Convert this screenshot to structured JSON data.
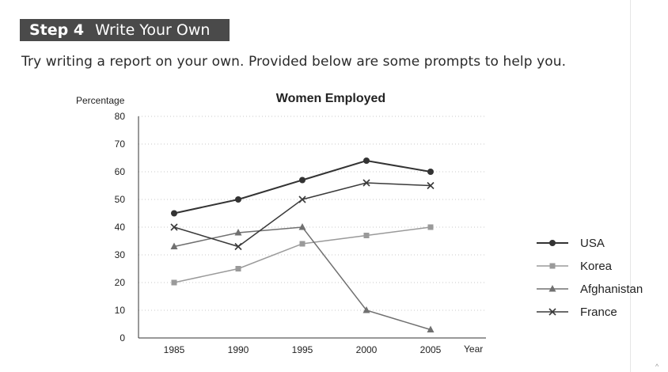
{
  "header": {
    "step_label": "Step 4",
    "step_title": "Write Your Own",
    "intro": "Try writing a report on your own. Provided below are some prompts to help you."
  },
  "corner_mark": "^",
  "chart_data": {
    "type": "line",
    "title": "Women Employed",
    "ylabel": "Percentage",
    "xlabel": "Year",
    "categories": [
      "1985",
      "1990",
      "1995",
      "2000",
      "2005"
    ],
    "ylim": [
      0,
      80
    ],
    "yticks": [
      0,
      10,
      20,
      30,
      40,
      50,
      60,
      70,
      80
    ],
    "grid": true,
    "legend_position": "right",
    "series": [
      {
        "name": "USA",
        "values": [
          45,
          50,
          57,
          64,
          60
        ],
        "marker": "circle",
        "color": "#333333"
      },
      {
        "name": "Korea",
        "values": [
          20,
          25,
          34,
          37,
          40
        ],
        "marker": "square",
        "color": "#9a9a9a"
      },
      {
        "name": "Afghanistan",
        "values": [
          33,
          38,
          40,
          10,
          3
        ],
        "marker": "triangle",
        "color": "#707070"
      },
      {
        "name": "France",
        "values": [
          40,
          33,
          50,
          56,
          55
        ],
        "marker": "x",
        "color": "#3a3a3a"
      }
    ]
  }
}
